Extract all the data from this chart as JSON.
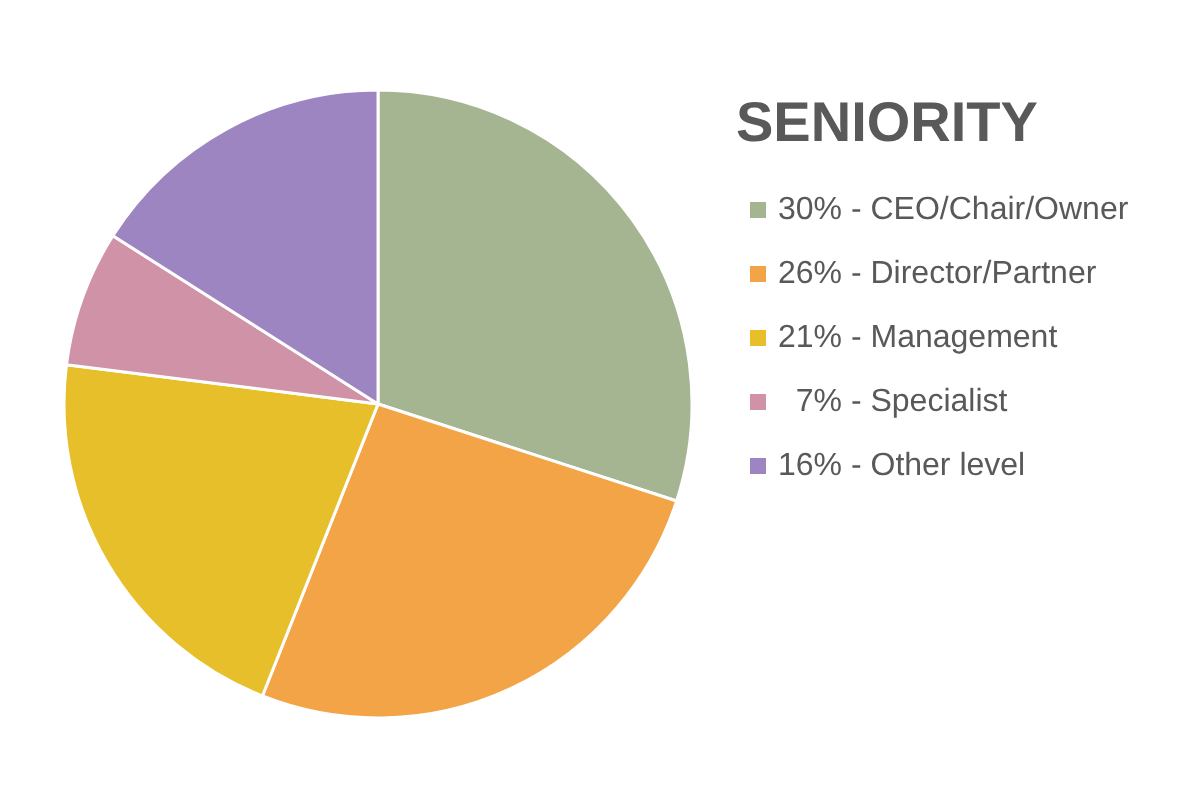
{
  "chart_data": {
    "type": "pie",
    "title": "SENIORITY",
    "categories": [
      "30% - CEO/Chair/Owner",
      "26% - Director/Partner",
      "21% - Management",
      "  7% - Specialist",
      "16% - Other level"
    ],
    "values": [
      30,
      26,
      21,
      7,
      16
    ],
    "colors": [
      "#a5b592",
      "#f3a447",
      "#e7bf2a",
      "#d092a7",
      "#9c85c0"
    ],
    "legend": "right"
  }
}
